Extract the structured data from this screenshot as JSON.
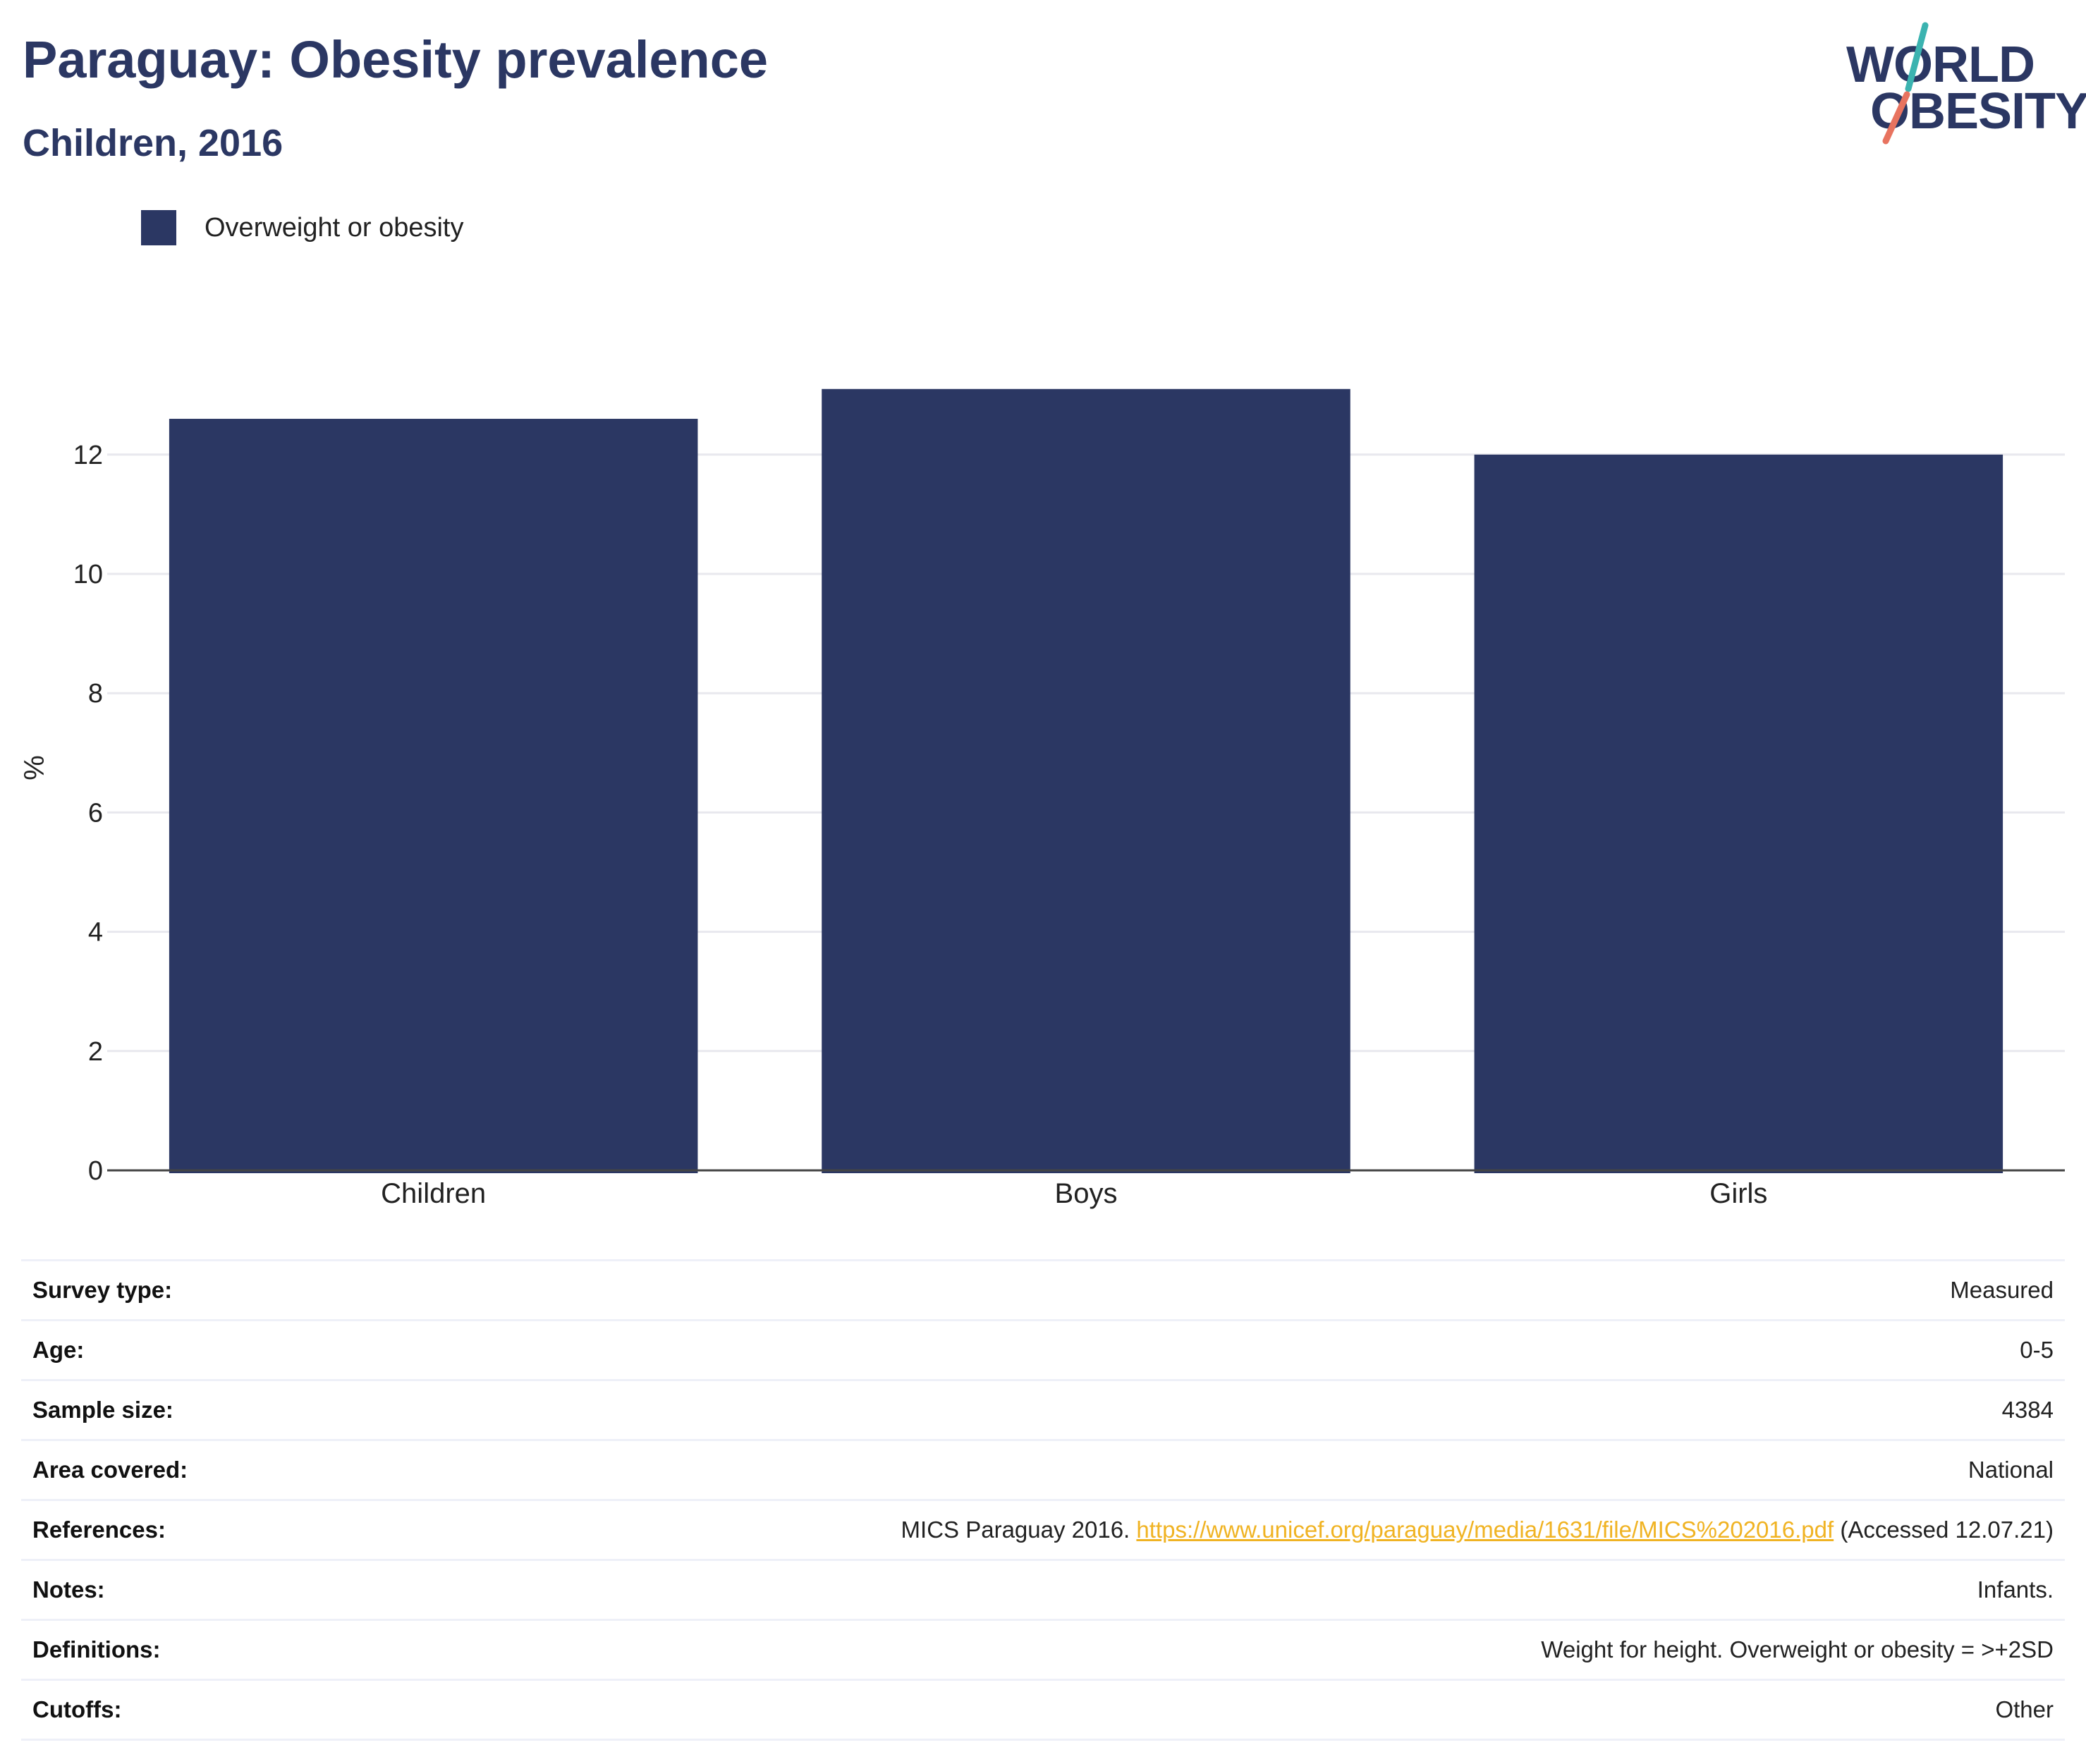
{
  "header": {
    "title": "Paraguay: Obesity prevalence",
    "subtitle": "Children, 2016"
  },
  "logo": {
    "line1": "WORLD",
    "line2": "OBESITY",
    "accent_teal": "#3bb3b0",
    "accent_coral": "#e8735f"
  },
  "legend": {
    "label": "Overweight or obesity",
    "color": "#2b3763"
  },
  "chart_data": {
    "type": "bar",
    "categories": [
      "Children",
      "Boys",
      "Girls"
    ],
    "series": [
      {
        "name": "Overweight or obesity",
        "values": [
          12.6,
          13.1,
          12.0
        ],
        "color": "#2b3763"
      }
    ],
    "title": "Paraguay: Obesity prevalence",
    "subtitle": "Children, 2016",
    "xlabel": "",
    "ylabel": "%",
    "ylim": [
      0,
      13.1
    ],
    "yticks": [
      0,
      2,
      4,
      6,
      8,
      10,
      12
    ],
    "grid": true,
    "legend_position": "top-left"
  },
  "info_table": {
    "rows": [
      {
        "label": "Survey type:",
        "value": "Measured"
      },
      {
        "label": "Age:",
        "value": "0-5"
      },
      {
        "label": "Sample size:",
        "value": "4384"
      },
      {
        "label": "Area covered:",
        "value": "National"
      },
      {
        "label": "References:",
        "value_prefix": "MICS Paraguay 2016.",
        "link": "https://www.unicef.org/paraguay/media/1631/file/MICS%202016.pdf",
        "value_suffix": "(Accessed 12.07.21)"
      },
      {
        "label": "Notes:",
        "value": "Infants."
      },
      {
        "label": "Definitions:",
        "value": "Weight for height. Overweight or obesity = >+2SD"
      },
      {
        "label": "Cutoffs:",
        "value": "Other"
      }
    ]
  }
}
